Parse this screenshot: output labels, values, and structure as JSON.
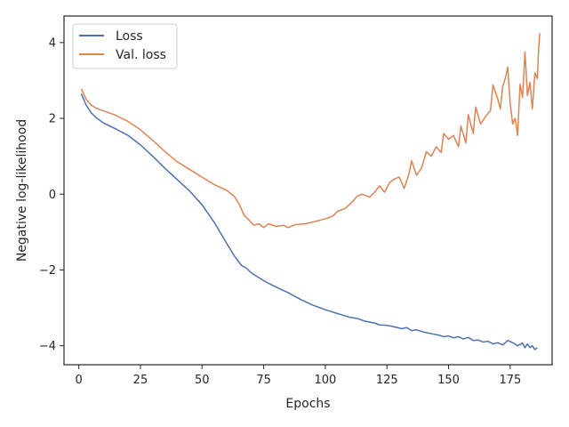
{
  "chart_data": {
    "type": "line",
    "title": "",
    "xlabel": "Epochs",
    "ylabel": "Negative log-likelihood",
    "xlim": [
      -6,
      192
    ],
    "ylim": [
      -4.5,
      4.7
    ],
    "xticks": [
      0,
      25,
      50,
      75,
      100,
      125,
      150,
      175
    ],
    "yticks": [
      -4,
      -2,
      0,
      2,
      4
    ],
    "xtick_labels": [
      "0",
      "25",
      "50",
      "75",
      "100",
      "125",
      "150",
      "175"
    ],
    "ytick_labels": [
      "−4",
      "−2",
      "0",
      "2",
      "4"
    ],
    "grid": false,
    "legend_position": "upper-left",
    "series": [
      {
        "name": "Loss",
        "color": "#4c72b0",
        "points": [
          [
            1,
            2.65
          ],
          [
            3,
            2.35
          ],
          [
            5,
            2.15
          ],
          [
            7,
            2.02
          ],
          [
            10,
            1.88
          ],
          [
            15,
            1.72
          ],
          [
            20,
            1.55
          ],
          [
            25,
            1.3
          ],
          [
            30,
            1.0
          ],
          [
            35,
            0.68
          ],
          [
            40,
            0.38
          ],
          [
            45,
            0.08
          ],
          [
            50,
            -0.28
          ],
          [
            55,
            -0.75
          ],
          [
            60,
            -1.3
          ],
          [
            63,
            -1.62
          ],
          [
            66,
            -1.88
          ],
          [
            68,
            -1.95
          ],
          [
            70,
            -2.08
          ],
          [
            73,
            -2.2
          ],
          [
            76,
            -2.32
          ],
          [
            80,
            -2.45
          ],
          [
            85,
            -2.6
          ],
          [
            90,
            -2.78
          ],
          [
            95,
            -2.93
          ],
          [
            100,
            -3.05
          ],
          [
            105,
            -3.15
          ],
          [
            110,
            -3.25
          ],
          [
            113,
            -3.28
          ],
          [
            116,
            -3.35
          ],
          [
            120,
            -3.4
          ],
          [
            122,
            -3.45
          ],
          [
            125,
            -3.46
          ],
          [
            128,
            -3.5
          ],
          [
            131,
            -3.55
          ],
          [
            133,
            -3.52
          ],
          [
            135,
            -3.6
          ],
          [
            137,
            -3.58
          ],
          [
            140,
            -3.64
          ],
          [
            143,
            -3.68
          ],
          [
            146,
            -3.72
          ],
          [
            148,
            -3.76
          ],
          [
            150,
            -3.74
          ],
          [
            152,
            -3.79
          ],
          [
            154,
            -3.76
          ],
          [
            156,
            -3.82
          ],
          [
            158,
            -3.78
          ],
          [
            160,
            -3.86
          ],
          [
            162,
            -3.85
          ],
          [
            164,
            -3.9
          ],
          [
            166,
            -3.88
          ],
          [
            168,
            -3.95
          ],
          [
            170,
            -3.92
          ],
          [
            172,
            -3.98
          ],
          [
            174,
            -3.86
          ],
          [
            176,
            -3.92
          ],
          [
            178,
            -4.0
          ],
          [
            180,
            -3.93
          ],
          [
            181,
            -4.05
          ],
          [
            182,
            -3.95
          ],
          [
            183,
            -4.05
          ],
          [
            184,
            -4.0
          ],
          [
            185,
            -4.1
          ],
          [
            186,
            -4.05
          ]
        ]
      },
      {
        "name": "Val. loss",
        "color": "#dd8452",
        "points": [
          [
            1,
            2.78
          ],
          [
            3,
            2.5
          ],
          [
            5,
            2.35
          ],
          [
            7,
            2.27
          ],
          [
            10,
            2.2
          ],
          [
            15,
            2.08
          ],
          [
            20,
            1.92
          ],
          [
            25,
            1.7
          ],
          [
            30,
            1.42
          ],
          [
            35,
            1.12
          ],
          [
            40,
            0.85
          ],
          [
            45,
            0.65
          ],
          [
            50,
            0.45
          ],
          [
            55,
            0.25
          ],
          [
            60,
            0.1
          ],
          [
            63,
            -0.05
          ],
          [
            65,
            -0.25
          ],
          [
            67,
            -0.55
          ],
          [
            69,
            -0.68
          ],
          [
            71,
            -0.82
          ],
          [
            73,
            -0.78
          ],
          [
            75,
            -0.88
          ],
          [
            77,
            -0.78
          ],
          [
            80,
            -0.85
          ],
          [
            83,
            -0.82
          ],
          [
            85,
            -0.88
          ],
          [
            88,
            -0.8
          ],
          [
            92,
            -0.78
          ],
          [
            96,
            -0.72
          ],
          [
            100,
            -0.65
          ],
          [
            103,
            -0.58
          ],
          [
            105,
            -0.45
          ],
          [
            108,
            -0.38
          ],
          [
            111,
            -0.2
          ],
          [
            113,
            -0.05
          ],
          [
            115,
            0.0
          ],
          [
            118,
            -0.08
          ],
          [
            120,
            0.05
          ],
          [
            122,
            0.22
          ],
          [
            124,
            0.05
          ],
          [
            126,
            0.3
          ],
          [
            128,
            0.4
          ],
          [
            130,
            0.45
          ],
          [
            132,
            0.15
          ],
          [
            134,
            0.55
          ],
          [
            135,
            0.88
          ],
          [
            137,
            0.5
          ],
          [
            139,
            0.68
          ],
          [
            141,
            1.12
          ],
          [
            143,
            1.0
          ],
          [
            145,
            1.25
          ],
          [
            147,
            1.1
          ],
          [
            148,
            1.6
          ],
          [
            150,
            1.45
          ],
          [
            152,
            1.55
          ],
          [
            154,
            1.25
          ],
          [
            155,
            1.8
          ],
          [
            157,
            1.35
          ],
          [
            158,
            2.1
          ],
          [
            160,
            1.6
          ],
          [
            161,
            2.3
          ],
          [
            163,
            1.85
          ],
          [
            165,
            2.05
          ],
          [
            167,
            2.2
          ],
          [
            168,
            2.88
          ],
          [
            170,
            2.5
          ],
          [
            171,
            2.25
          ],
          [
            172,
            2.85
          ],
          [
            173,
            3.05
          ],
          [
            174,
            3.35
          ],
          [
            175,
            2.4
          ],
          [
            176,
            1.85
          ],
          [
            177,
            2.0
          ],
          [
            178,
            1.55
          ],
          [
            179,
            2.9
          ],
          [
            180,
            2.55
          ],
          [
            181,
            3.75
          ],
          [
            182,
            2.6
          ],
          [
            183,
            2.95
          ],
          [
            184,
            2.25
          ],
          [
            185,
            3.2
          ],
          [
            186,
            3.05
          ],
          [
            186.5,
            3.8
          ],
          [
            187,
            4.25
          ]
        ]
      }
    ]
  }
}
